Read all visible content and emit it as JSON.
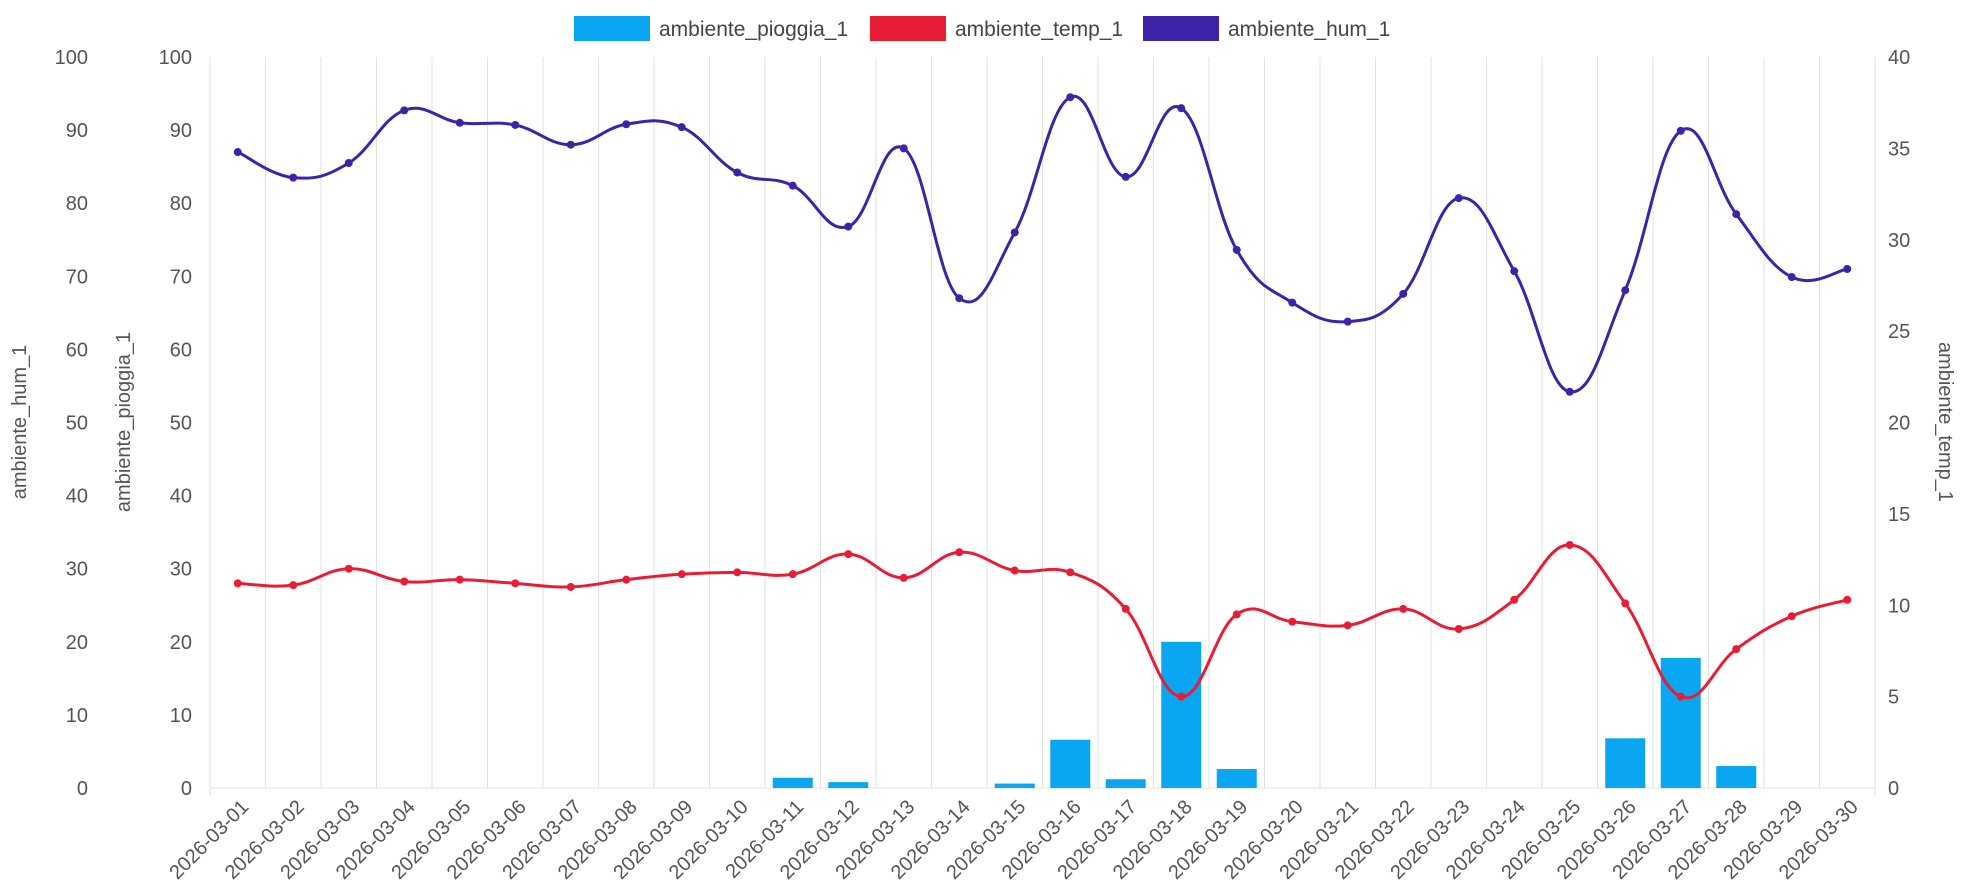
{
  "chart_data": {
    "type": "bar",
    "x": [
      "2026-03-01",
      "2026-03-02",
      "2026-03-03",
      "2026-03-04",
      "2026-03-05",
      "2026-03-06",
      "2026-03-07",
      "2026-03-08",
      "2026-03-09",
      "2026-03-10",
      "2026-03-11",
      "2026-03-12",
      "2026-03-13",
      "2026-03-14",
      "2026-03-15",
      "2026-03-16",
      "2026-03-17",
      "2026-03-18",
      "2026-03-19",
      "2026-03-20",
      "2026-03-21",
      "2026-03-22",
      "2026-03-23",
      "2026-03-24",
      "2026-03-25",
      "2026-03-26",
      "2026-03-27",
      "2026-03-28",
      "2026-03-29",
      "2026-03-30"
    ],
    "series": [
      {
        "name": "ambiente_pioggia_1",
        "type": "bar",
        "axis": "ambiente_pioggia_1",
        "color": "#0aa6f2",
        "values": [
          null,
          null,
          null,
          null,
          null,
          null,
          null,
          null,
          null,
          null,
          1.4,
          0.8,
          null,
          null,
          0.6,
          6.6,
          1.2,
          20.0,
          2.6,
          null,
          null,
          null,
          null,
          null,
          null,
          6.8,
          17.8,
          3.0,
          null,
          null
        ]
      },
      {
        "name": "ambiente_temp_1",
        "type": "line",
        "axis": "ambiente_temp_1",
        "color": "#e81d35",
        "values": [
          11.2,
          11.1,
          12.0,
          11.3,
          11.4,
          11.2,
          11.0,
          11.4,
          11.7,
          11.8,
          11.7,
          12.8,
          11.5,
          12.9,
          11.9,
          11.8,
          9.8,
          5.0,
          9.5,
          9.1,
          8.9,
          9.8,
          8.7,
          10.3,
          13.3,
          10.1,
          5.0,
          7.6,
          9.4,
          10.3
        ]
      },
      {
        "name": "ambiente_hum_1",
        "type": "line",
        "axis": "ambiente_hum_1",
        "color": "#3e22a8",
        "values": [
          87.0,
          83.5,
          85.5,
          92.7,
          91.0,
          90.7,
          88.0,
          90.8,
          90.4,
          84.2,
          82.4,
          76.8,
          87.5,
          67.0,
          76.0,
          94.5,
          83.6,
          93.0,
          73.6,
          66.4,
          63.8,
          67.6,
          80.7,
          70.7,
          54.2,
          68.1,
          89.9,
          78.5,
          69.9,
          71.0
        ]
      }
    ],
    "axes": [
      {
        "title": "ambiente_hum_1",
        "side": "left-outer",
        "range": [
          0,
          100
        ],
        "ticks": [
          "0",
          "10",
          "20",
          "30",
          "40",
          "50",
          "60",
          "70",
          "80",
          "90",
          "100"
        ]
      },
      {
        "title": "ambiente_pioggia_1",
        "side": "left-inner",
        "range": [
          0,
          100
        ],
        "ticks": [
          "0",
          "10",
          "20",
          "30",
          "40",
          "50",
          "60",
          "70",
          "80",
          "90",
          "100"
        ]
      },
      {
        "title": "ambiente_temp_1",
        "side": "right",
        "range": [
          0,
          40
        ],
        "ticks": [
          "0",
          "5",
          "10",
          "15",
          "20",
          "25",
          "30",
          "35",
          "40"
        ]
      }
    ],
    "legend": {
      "position": "top-center",
      "items": [
        "ambiente_pioggia_1",
        "ambiente_temp_1",
        "ambiente_hum_1"
      ]
    },
    "grid": {
      "vertical": true,
      "horizontal": false
    }
  }
}
